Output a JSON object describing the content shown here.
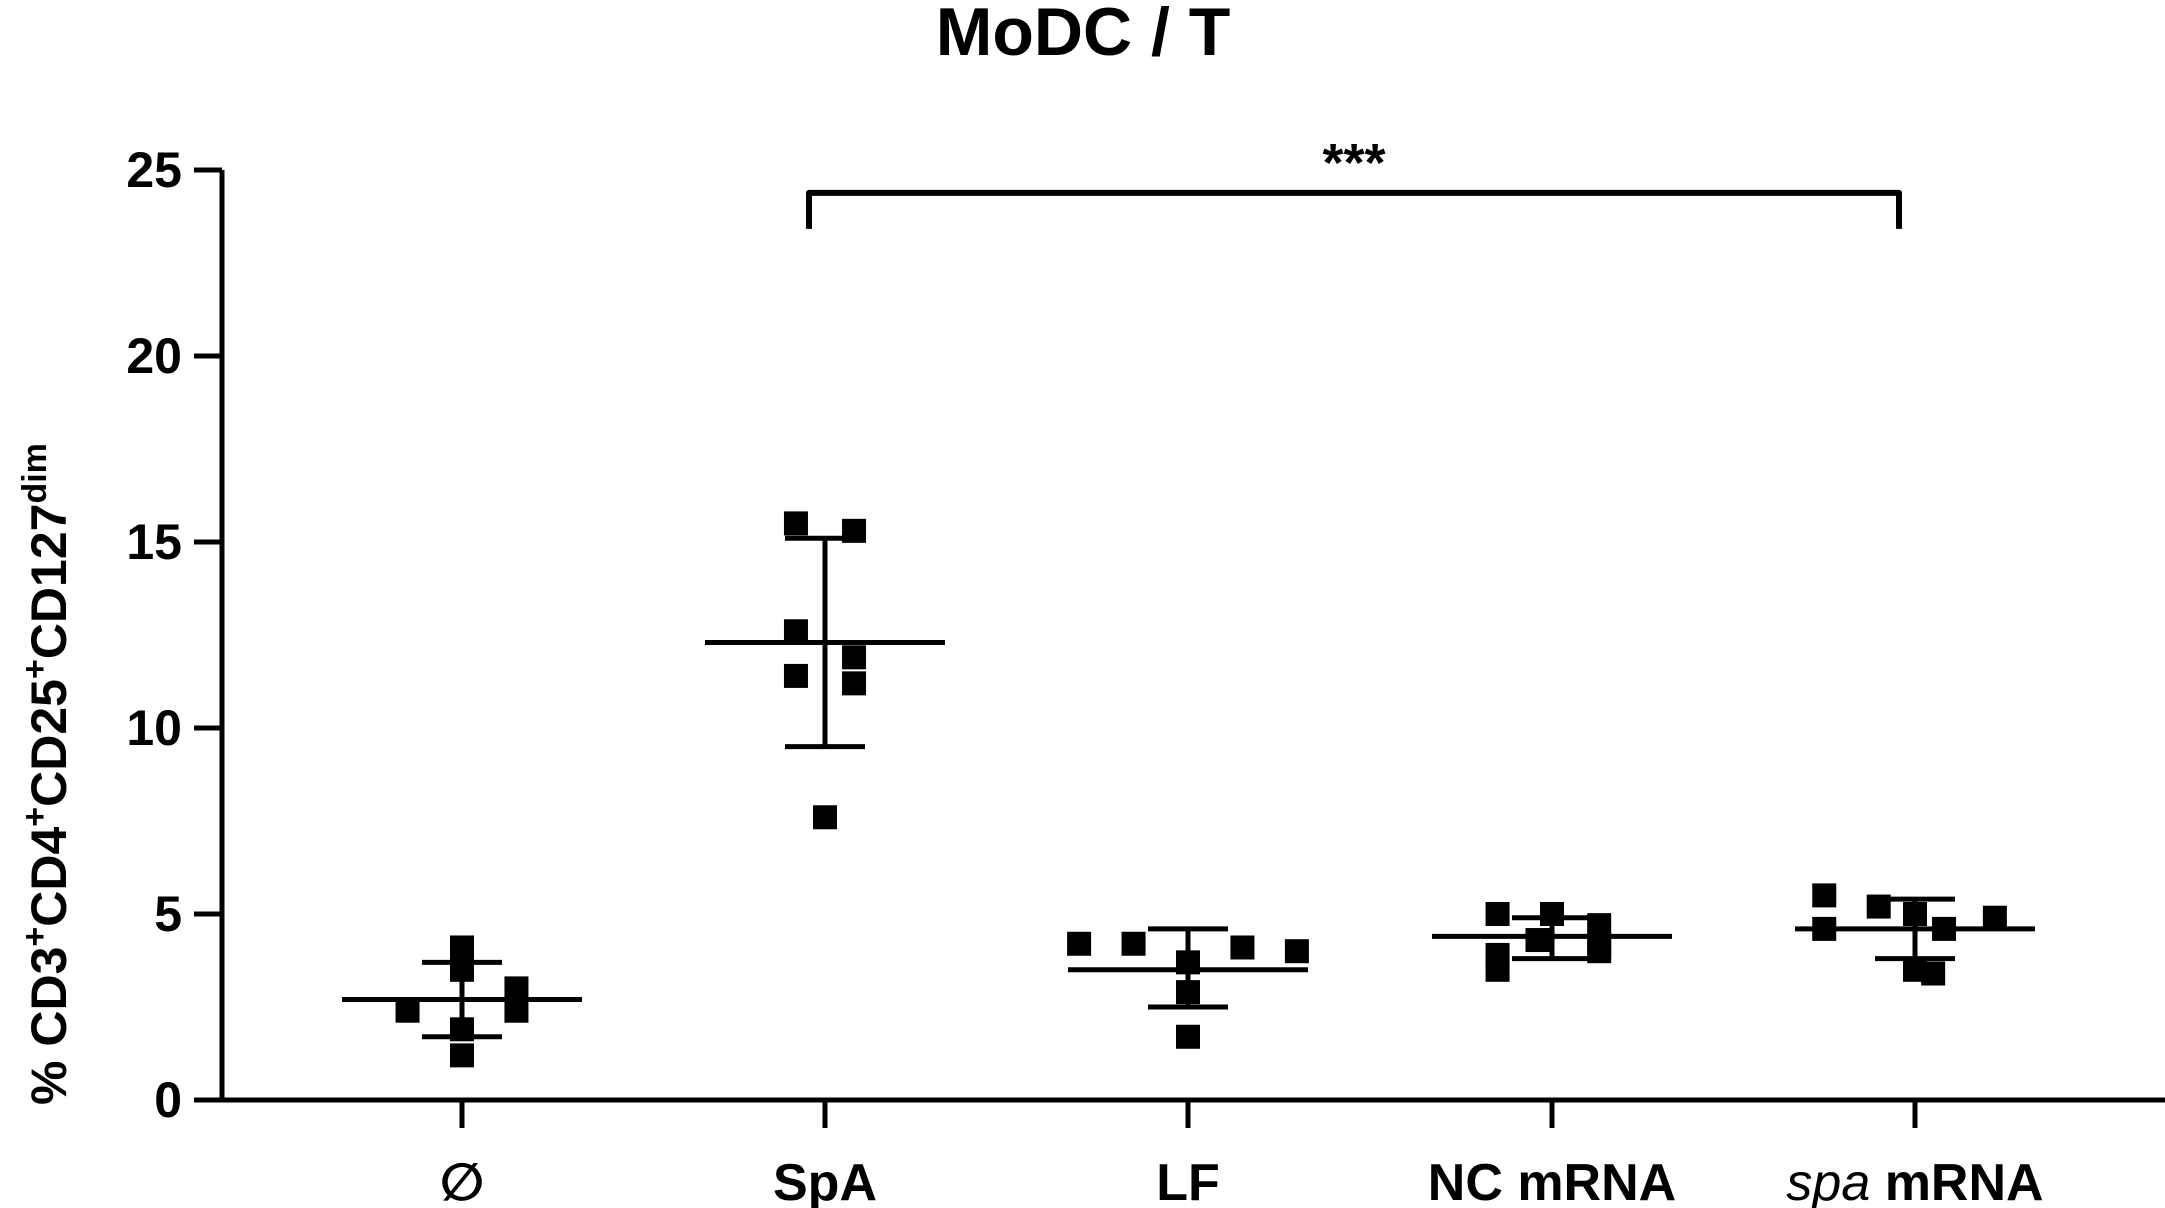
{
  "chart_data": {
    "type": "scatter",
    "title": "MoDC / T",
    "ylabel": {
      "parts": [
        {
          "text": "% CD3",
          "sup": false
        },
        {
          "text": "+",
          "sup": true
        },
        {
          "text": "CD4",
          "sup": false
        },
        {
          "text": "+",
          "sup": true
        },
        {
          "text": "CD25",
          "sup": false
        },
        {
          "text": "+",
          "sup": true
        },
        {
          "text": "CD127",
          "sup": false
        },
        {
          "text": "dim",
          "sup": true
        }
      ]
    },
    "ylim": [
      0,
      25
    ],
    "yticks": [
      0,
      5,
      10,
      15,
      20,
      25
    ],
    "grid": false,
    "categories": [
      {
        "label": "∅",
        "italic_part": "",
        "plain_part": "∅"
      },
      {
        "label": "SpA",
        "italic_part": "",
        "plain_part": "SpA"
      },
      {
        "label": "LF",
        "italic_part": "",
        "plain_part": "LF"
      },
      {
        "label": "NC mRNA",
        "italic_part": "",
        "plain_part": "NC mRNA"
      },
      {
        "label": "spa mRNA",
        "italic_part": "spa",
        "plain_part": " mRNA"
      }
    ],
    "groups": [
      {
        "points": [
          [
            -0.0,
            4.1
          ],
          [
            0.0,
            3.5
          ],
          [
            -0.15,
            2.4
          ],
          [
            0.15,
            2.4
          ],
          [
            0.15,
            3.0
          ],
          [
            0.0,
            1.9
          ],
          [
            0.0,
            1.2
          ]
        ],
        "mean": 2.7,
        "sd_upper": 3.7,
        "sd_lower": 1.7
      },
      {
        "points": [
          [
            -0.08,
            15.5
          ],
          [
            0.08,
            15.3
          ],
          [
            -0.08,
            12.6
          ],
          [
            0.08,
            11.9
          ],
          [
            -0.08,
            11.4
          ],
          [
            0.08,
            11.2
          ],
          [
            0.0,
            7.6
          ]
        ],
        "mean": 12.3,
        "sd_upper": 15.1,
        "sd_lower": 9.5
      },
      {
        "points": [
          [
            -0.3,
            4.2
          ],
          [
            -0.15,
            4.2
          ],
          [
            0.15,
            4.1
          ],
          [
            0.3,
            4.0
          ],
          [
            0.0,
            3.7
          ],
          [
            0.0,
            2.9
          ],
          [
            0.0,
            1.7
          ]
        ],
        "mean": 3.5,
        "sd_upper": 4.6,
        "sd_lower": 2.5
      },
      {
        "points": [
          [
            -0.15,
            5.0
          ],
          [
            0.0,
            5.0
          ],
          [
            0.13,
            4.7
          ],
          [
            -0.04,
            4.3
          ],
          [
            0.13,
            4.2
          ],
          [
            0.13,
            4.0
          ],
          [
            -0.15,
            3.9
          ],
          [
            -0.15,
            3.5
          ]
        ],
        "mean": 4.4,
        "sd_upper": 4.9,
        "sd_lower": 3.8
      },
      {
        "points": [
          [
            -0.25,
            5.5
          ],
          [
            -0.1,
            5.2
          ],
          [
            0.0,
            5.0
          ],
          [
            0.22,
            4.9
          ],
          [
            -0.25,
            4.6
          ],
          [
            0.08,
            4.6
          ],
          [
            0.0,
            3.5
          ],
          [
            0.05,
            3.4
          ]
        ],
        "mean": 4.6,
        "sd_upper": 5.4,
        "sd_lower": 3.8
      }
    ],
    "annotations": [
      {
        "type": "bracket",
        "from_category": 1,
        "to_category": 4,
        "y": 24.6,
        "text": "***"
      }
    ]
  }
}
